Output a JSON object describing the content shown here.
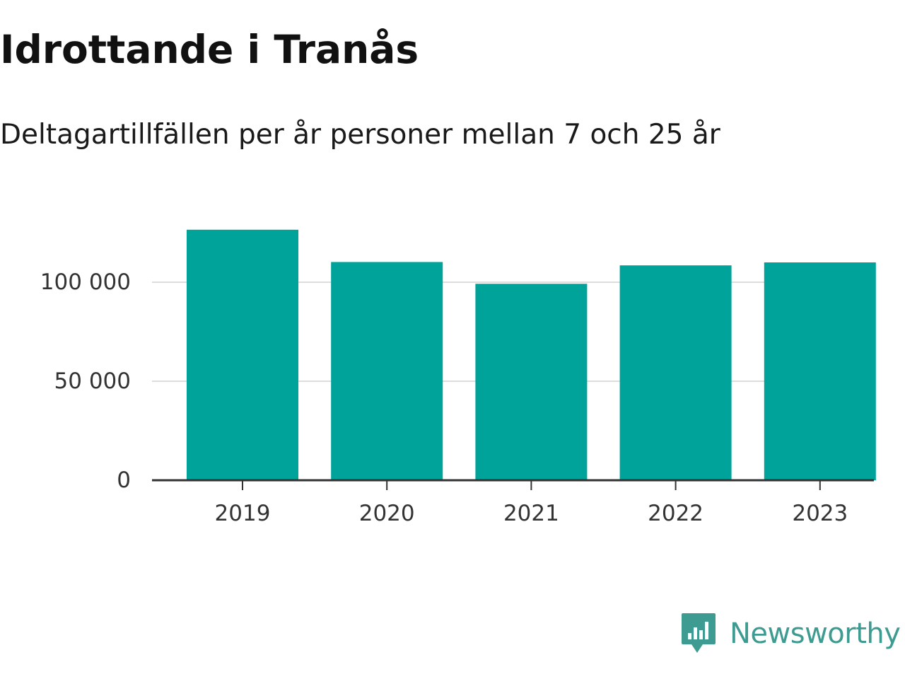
{
  "title": "Idrottande i Tranås",
  "subtitle": "Deltagartillfällen per år personer mellan 7 och 25 år",
  "brand": {
    "name": "Newsworthy",
    "icon": "newsworthy-logo-icon",
    "color": "#3d9b91"
  },
  "colors": {
    "bar": "#00a39a",
    "grid": "#dddddd",
    "axis": "#333333"
  },
  "chart_data": {
    "type": "bar",
    "title": "Idrottande i Tranås",
    "subtitle": "Deltagartillfällen per år personer mellan 7 och 25 år",
    "categories": [
      "2019",
      "2020",
      "2021",
      "2022",
      "2023"
    ],
    "values": [
      126500,
      110200,
      99200,
      108500,
      110000
    ],
    "ylim": [
      0,
      135000
    ],
    "yticks": [
      0,
      50000,
      100000
    ],
    "ytick_labels": [
      "0",
      "50 000",
      "100 000"
    ],
    "xlabel": "",
    "ylabel": "",
    "grid": true,
    "legend": "none"
  }
}
